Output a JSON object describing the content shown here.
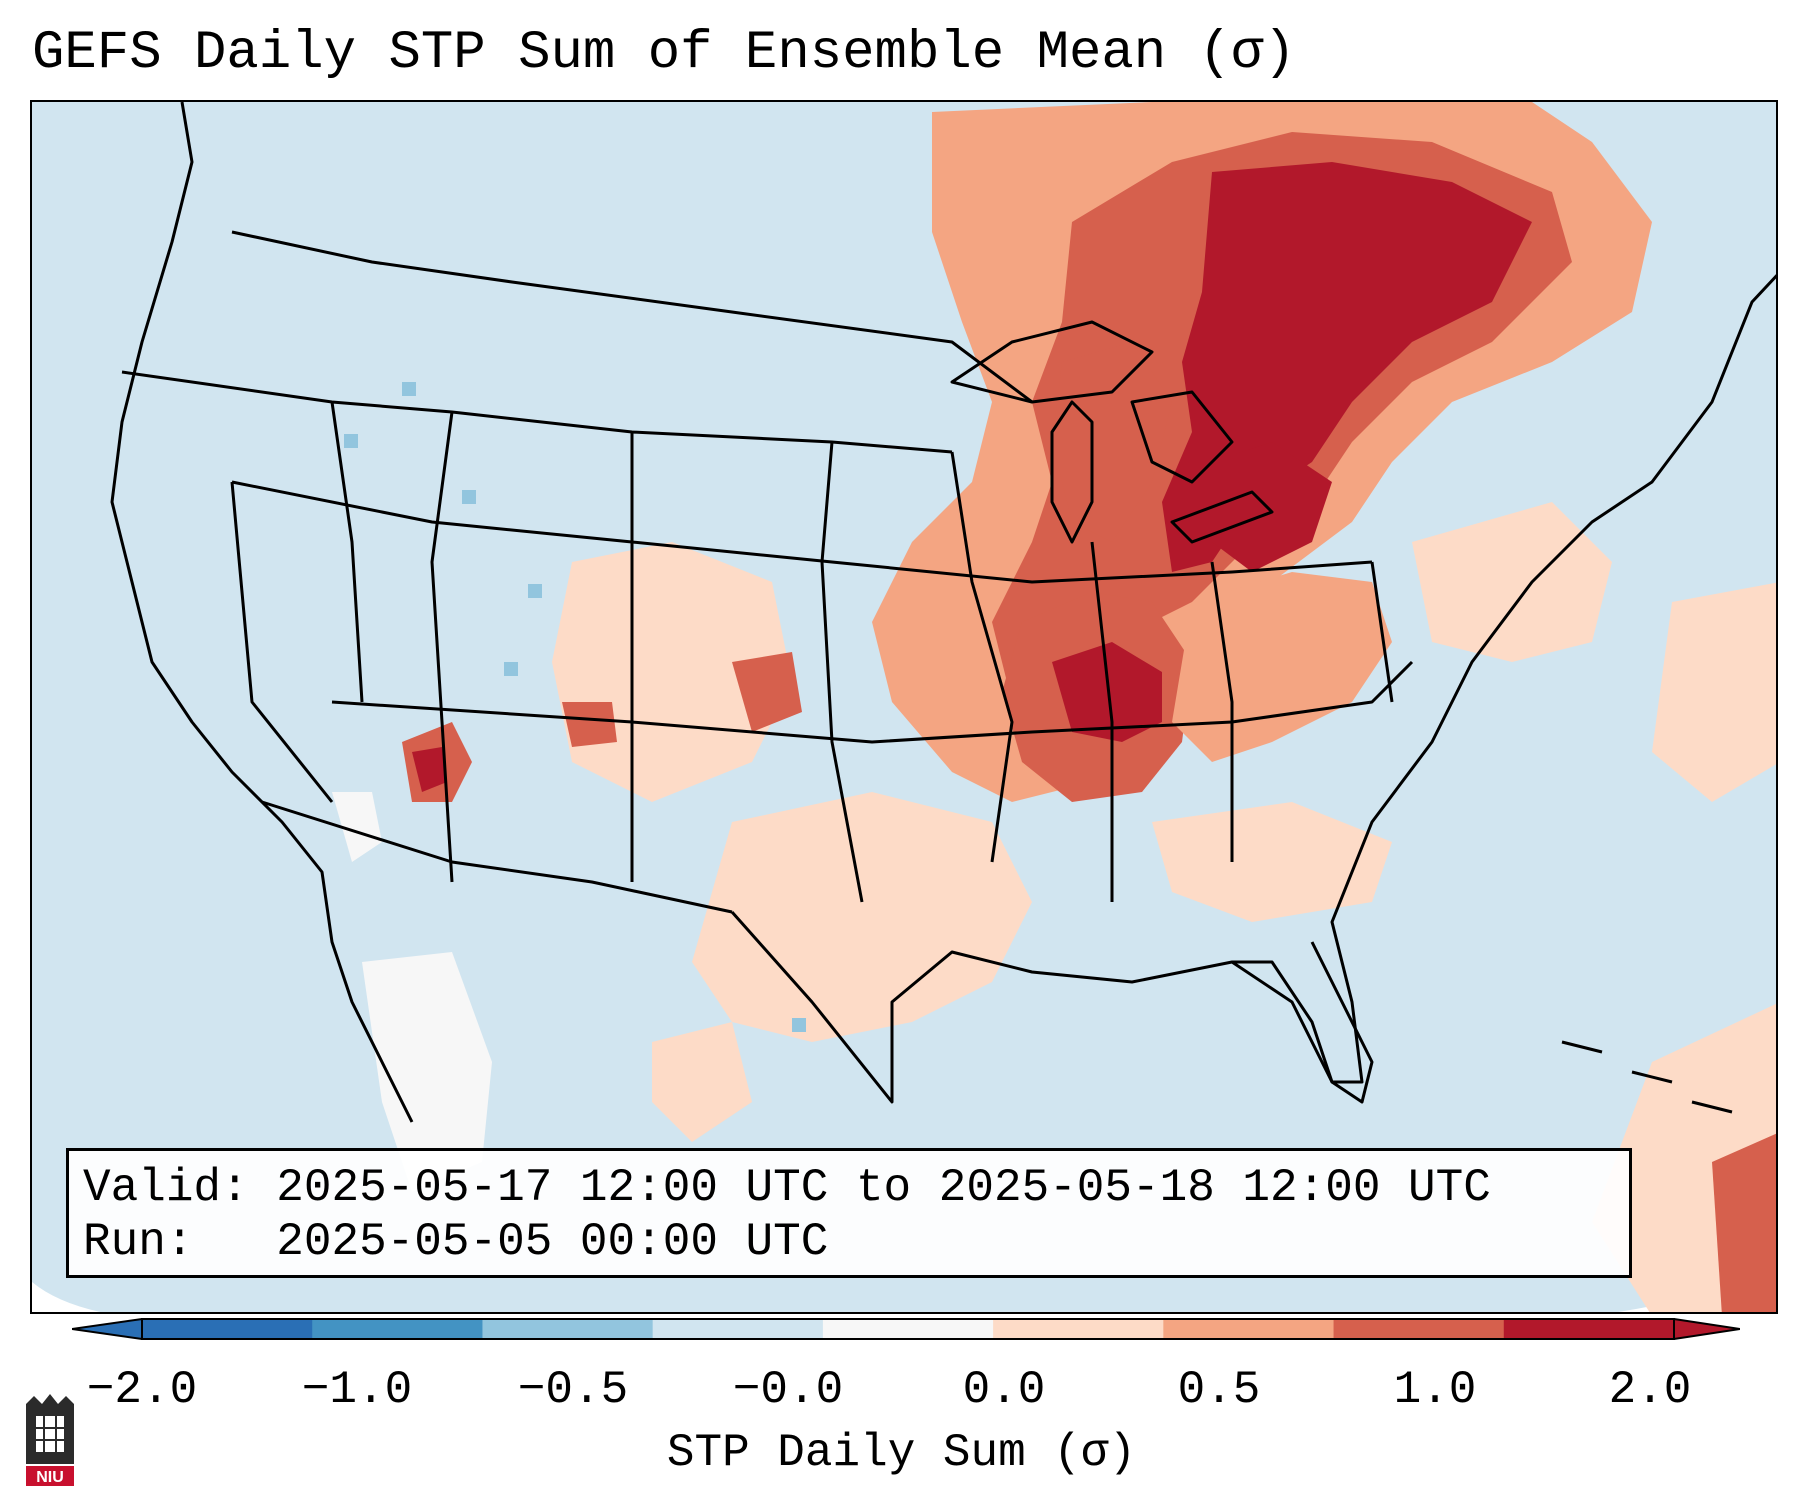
{
  "title": "GEFS Daily STP Sum of Ensemble Mean (σ)",
  "info": {
    "valid_label": "Valid:",
    "valid_value": "2025-05-17 12:00 UTC to 2025-05-18 12:00 UTC",
    "run_label": "Run:",
    "run_value": "2025-05-05 00:00 UTC"
  },
  "colorbar": {
    "label": "STP Daily Sum (σ)",
    "ticks": [
      "−2.0",
      "−1.0",
      "−0.5",
      "−0.0",
      "0.0",
      "0.5",
      "1.0",
      "2.0"
    ],
    "colors": [
      "#2a6fb5",
      "#4393c3",
      "#92c5de",
      "#d1e5f0",
      "#f7f7f7",
      "#fddbc7",
      "#f4a582",
      "#d6604d",
      "#b2182b"
    ],
    "extend_low_color": "#2a6fb5",
    "extend_high_color": "#b2182b"
  },
  "logo": {
    "text": "NIU",
    "colors": {
      "tower": "#2b2b2b",
      "banner": "#c8102e"
    }
  },
  "map": {
    "background_color": "#d1e5f0",
    "border_color": "#000000",
    "features": [
      "state-borders",
      "coastlines",
      "great-lakes",
      "canada-provinces",
      "mexico-states"
    ],
    "anomaly_regions": [
      {
        "name": "Upper Midwest / Great Lakes",
        "level": "1.0 to 2.0+"
      },
      {
        "name": "Mid-Mississippi Valley",
        "level": "1.0 to 2.0+"
      },
      {
        "name": "Northeast Canada",
        "level": "1.0 to 2.0+"
      },
      {
        "name": "Ohio Valley",
        "level": "0.5 to 1.0"
      },
      {
        "name": "Southern Plains",
        "level": "0.0 to 0.5"
      },
      {
        "name": "Colorado / Four Corners",
        "level": "0.5 to 2.0"
      },
      {
        "name": "Western Atlantic / Caribbean",
        "level": "0.0 to 1.0"
      }
    ]
  }
}
